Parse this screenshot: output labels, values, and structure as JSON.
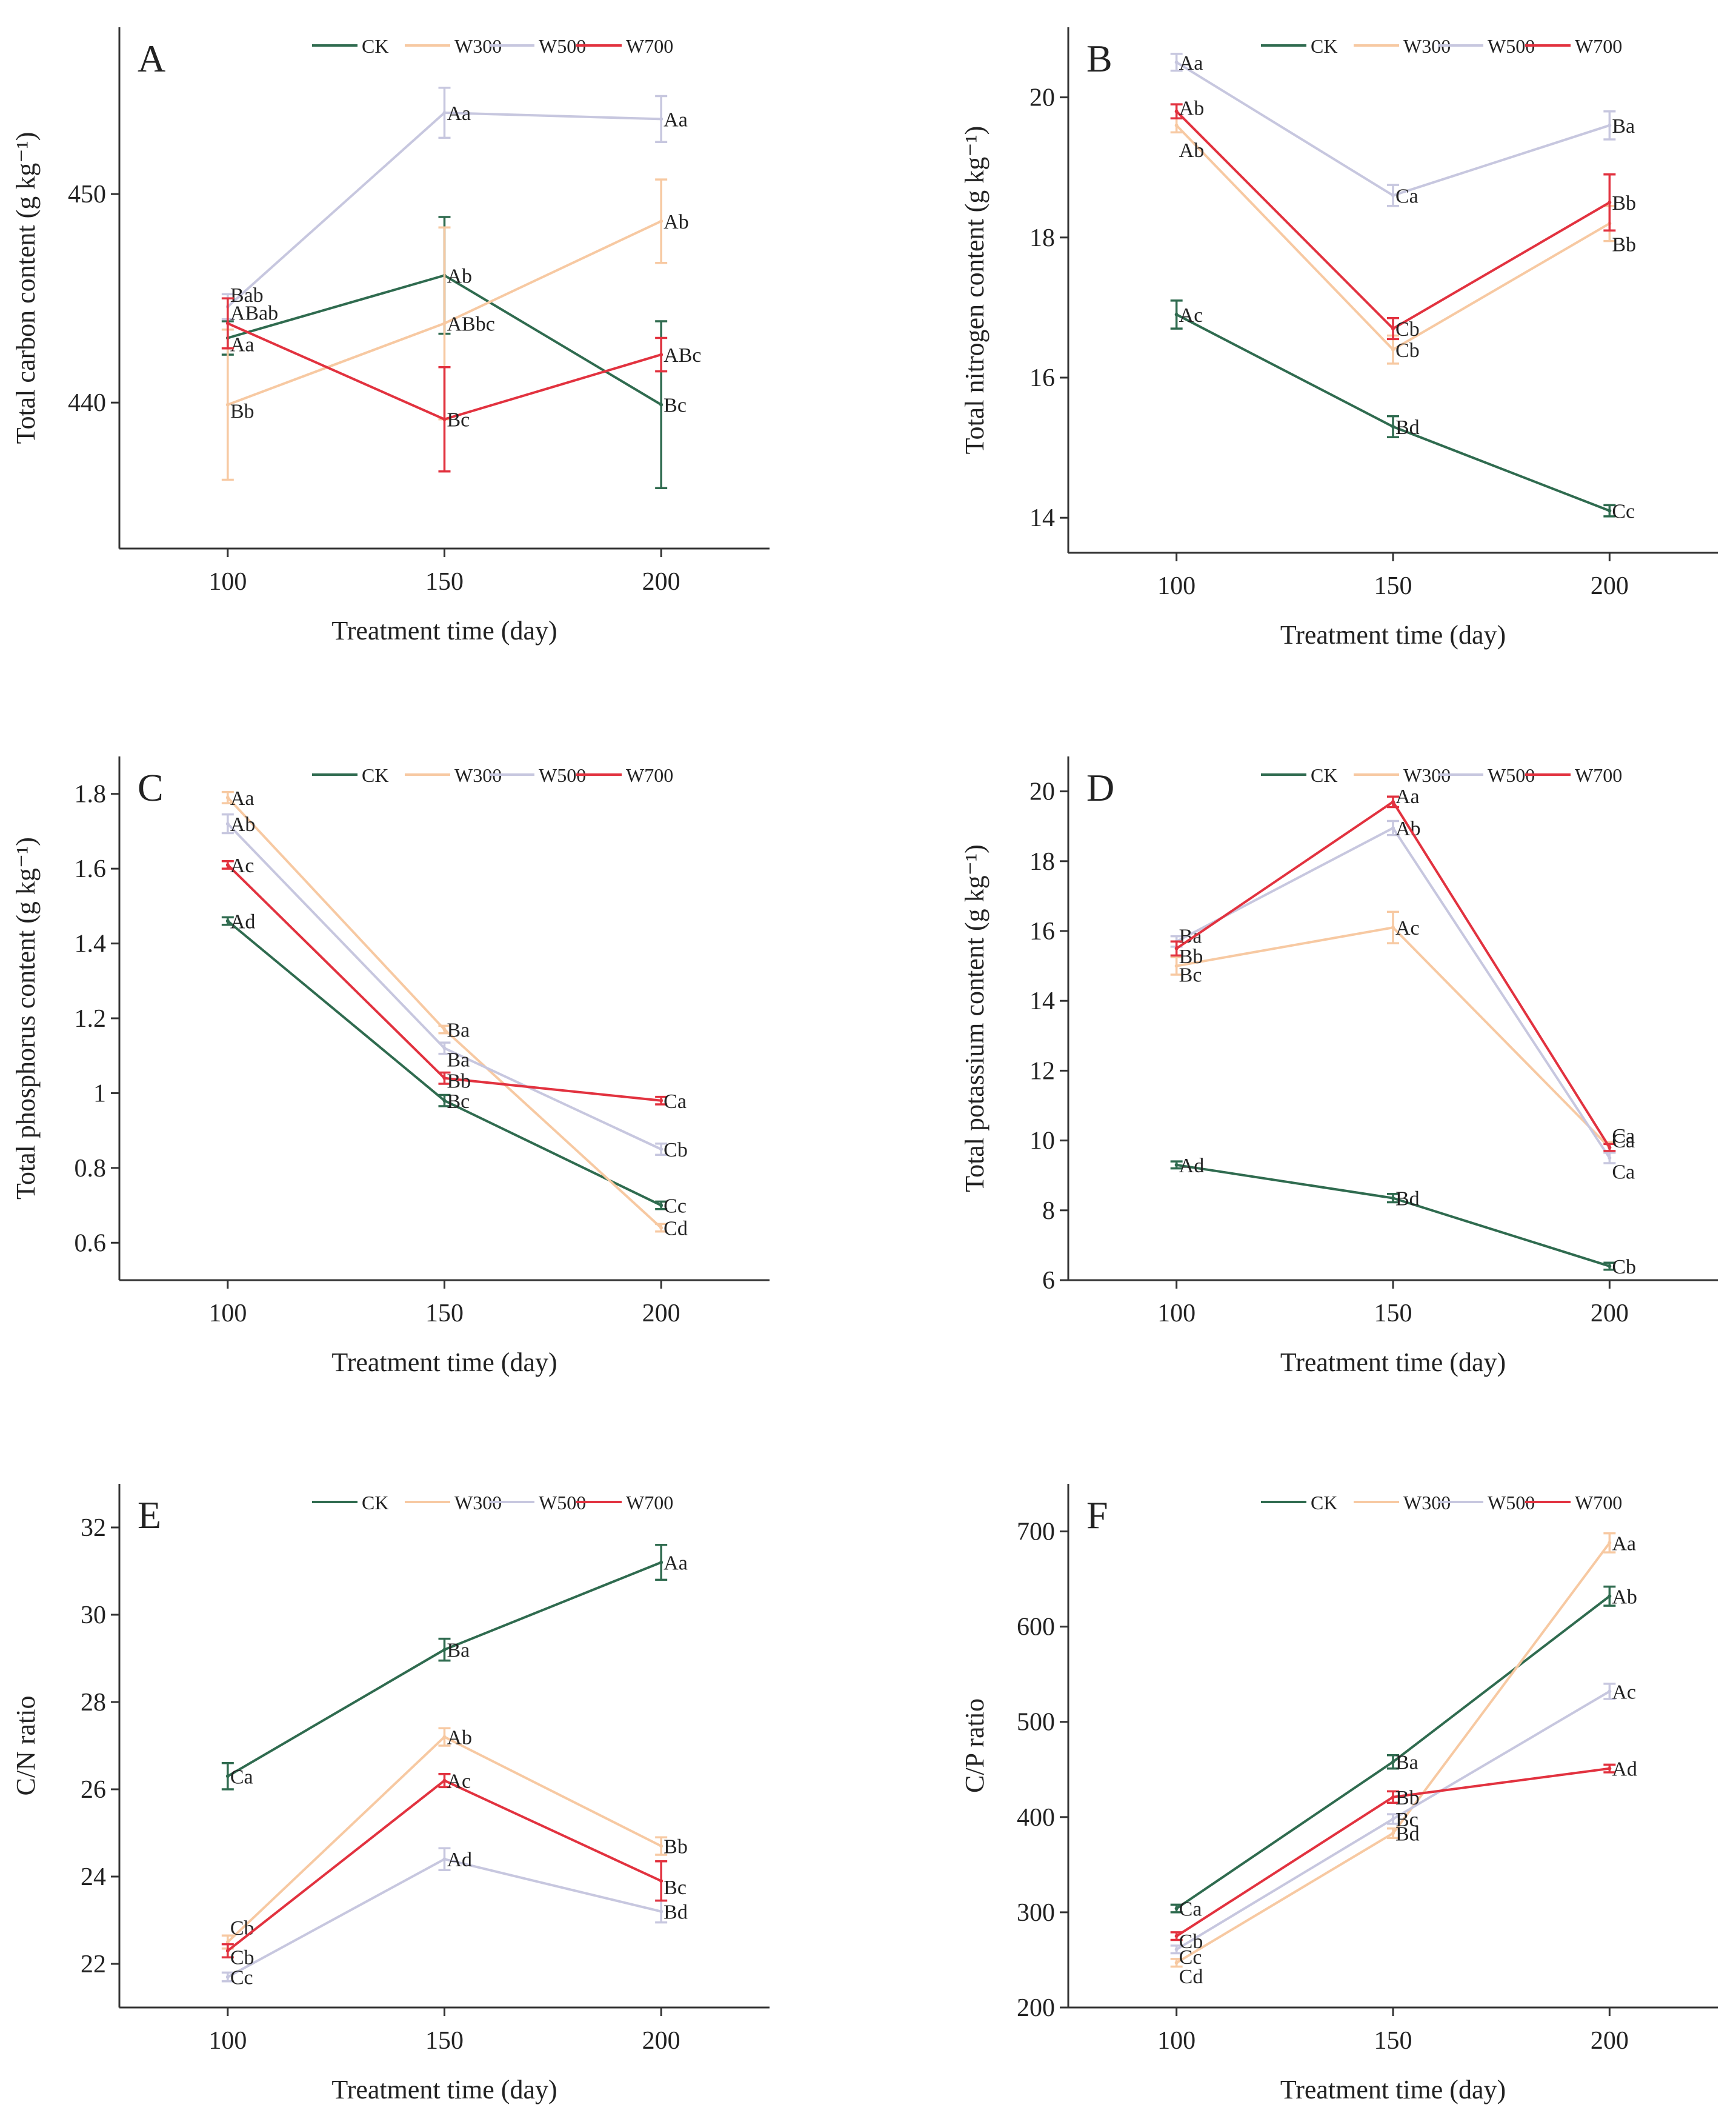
{
  "legend": {
    "series": [
      {
        "name": "CK",
        "color": "#2f6b4f"
      },
      {
        "name": "W300",
        "color": "#f7c9a2"
      },
      {
        "name": "W500",
        "color": "#c7c7df"
      },
      {
        "name": "W700",
        "color": "#e2323f"
      }
    ]
  },
  "chart_data": [
    {
      "type": "line",
      "panel": "A",
      "xlabel": "Treatment time (day)",
      "ylabel": "Total carbon content (g kg⁻¹)",
      "x": [
        100,
        150,
        200
      ],
      "xlim": [
        75,
        225
      ],
      "ylim": [
        433,
        458
      ],
      "yticks": [
        440,
        450
      ],
      "series": [
        {
          "name": "CK",
          "values": [
            443.1,
            446.1,
            439.9
          ],
          "errors": [
            0.8,
            2.8,
            4.0
          ],
          "labels": [
            "Aa",
            "Ab",
            "Bc"
          ]
        },
        {
          "name": "W300",
          "values": [
            439.9,
            443.8,
            448.7
          ],
          "errors": [
            3.6,
            4.6,
            2.0
          ],
          "labels": [
            "Bb",
            "ABbc",
            "Ab"
          ]
        },
        {
          "name": "W500",
          "values": [
            444.6,
            453.9,
            453.6
          ],
          "errors": [
            0.6,
            1.2,
            1.1
          ],
          "labels": [
            "Bab",
            "Aa",
            "Aa"
          ]
        },
        {
          "name": "W700",
          "values": [
            443.8,
            439.2,
            442.3
          ],
          "errors": [
            1.2,
            2.5,
            0.8
          ],
          "labels": [
            "ABab",
            "Bc",
            "ABc"
          ]
        }
      ]
    },
    {
      "type": "line",
      "panel": "B",
      "xlabel": "Treatment time (day)",
      "ylabel": "Total nitrogen content (g kg⁻¹)",
      "x": [
        100,
        150,
        200
      ],
      "xlim": [
        75,
        225
      ],
      "ylim": [
        13.5,
        21
      ],
      "yticks": [
        14,
        16,
        18,
        20
      ],
      "series": [
        {
          "name": "CK",
          "values": [
            16.9,
            15.3,
            14.1
          ],
          "errors": [
            0.2,
            0.15,
            0.08
          ],
          "labels": [
            "Ac",
            "Bd",
            "Cc"
          ]
        },
        {
          "name": "W300",
          "values": [
            19.6,
            16.4,
            18.2
          ],
          "errors": [
            0.1,
            0.2,
            0.25
          ],
          "labels": [
            "Ab",
            "Cb",
            "Bb"
          ]
        },
        {
          "name": "W500",
          "values": [
            20.5,
            18.6,
            19.6
          ],
          "errors": [
            0.12,
            0.15,
            0.2
          ],
          "labels": [
            "Aa",
            "Ca",
            "Ba"
          ]
        },
        {
          "name": "W700",
          "values": [
            19.8,
            16.7,
            18.5
          ],
          "errors": [
            0.1,
            0.15,
            0.4
          ],
          "labels": [
            "Ab",
            "Cb",
            "Bb"
          ]
        }
      ]
    },
    {
      "type": "line",
      "panel": "C",
      "xlabel": "Treatment time (day)",
      "ylabel": "Total phosphorus content (g kg⁻¹)",
      "x": [
        100,
        150,
        200
      ],
      "xlim": [
        75,
        225
      ],
      "ylim": [
        0.5,
        1.9
      ],
      "yticks": [
        0.6,
        0.8,
        1.0,
        1.2,
        1.4,
        1.6,
        1.8
      ],
      "series": [
        {
          "name": "CK",
          "values": [
            1.46,
            0.98,
            0.7
          ],
          "errors": [
            0.01,
            0.015,
            0.01
          ],
          "labels": [
            "Ad",
            "Bc",
            "Cc"
          ]
        },
        {
          "name": "W300",
          "values": [
            1.79,
            1.17,
            0.64
          ],
          "errors": [
            0.015,
            0.01,
            0.01
          ],
          "labels": [
            "Aa",
            "Ba",
            "Cd"
          ]
        },
        {
          "name": "W500",
          "values": [
            1.72,
            1.12,
            0.85
          ],
          "errors": [
            0.025,
            0.015,
            0.015
          ],
          "labels": [
            "Ab",
            "Ba",
            "Cb"
          ]
        },
        {
          "name": "W700",
          "values": [
            1.61,
            1.04,
            0.98
          ],
          "errors": [
            0.01,
            0.015,
            0.01
          ],
          "labels": [
            "Ac",
            "Bb",
            "Ca"
          ]
        }
      ]
    },
    {
      "type": "line",
      "panel": "D",
      "xlabel": "Treatment time (day)",
      "ylabel": "Total potassium content (g kg⁻¹)",
      "x": [
        100,
        150,
        200
      ],
      "xlim": [
        75,
        225
      ],
      "ylim": [
        6,
        21
      ],
      "yticks": [
        6,
        8,
        10,
        12,
        14,
        16,
        18,
        20
      ],
      "series": [
        {
          "name": "CK",
          "values": [
            9.3,
            8.35,
            6.4
          ],
          "errors": [
            0.1,
            0.12,
            0.1
          ],
          "labels": [
            "Ad",
            "Bd",
            "Cb"
          ]
        },
        {
          "name": "W300",
          "values": [
            15.0,
            16.1,
            9.8
          ],
          "errors": [
            0.25,
            0.45,
            0.15
          ],
          "labels": [
            "Bc",
            "Ac",
            "Ca"
          ]
        },
        {
          "name": "W500",
          "values": [
            15.7,
            18.95,
            9.5
          ],
          "errors": [
            0.15,
            0.2,
            0.15
          ],
          "labels": [
            "Ba",
            "Ab",
            "Ca"
          ]
        },
        {
          "name": "W700",
          "values": [
            15.5,
            19.7,
            9.8
          ],
          "errors": [
            0.2,
            0.15,
            0.1
          ],
          "labels": [
            "Bb",
            "Aa",
            "Ca"
          ]
        }
      ]
    },
    {
      "type": "line",
      "panel": "E",
      "xlabel": "Treatment time (day)",
      "ylabel": "C/N ratio",
      "x": [
        100,
        150,
        200
      ],
      "xlim": [
        75,
        225
      ],
      "ylim": [
        21,
        33
      ],
      "yticks": [
        22,
        24,
        26,
        28,
        30,
        32
      ],
      "series": [
        {
          "name": "CK",
          "values": [
            26.3,
            29.2,
            31.2
          ],
          "errors": [
            0.3,
            0.25,
            0.4
          ],
          "labels": [
            "Ca",
            "Ba",
            "Aa"
          ]
        },
        {
          "name": "W300",
          "values": [
            22.5,
            27.2,
            24.7
          ],
          "errors": [
            0.15,
            0.2,
            0.2
          ],
          "labels": [
            "Cb",
            "Ab",
            "Bb"
          ]
        },
        {
          "name": "W500",
          "values": [
            21.7,
            24.4,
            23.2
          ],
          "errors": [
            0.1,
            0.25,
            0.25
          ],
          "labels": [
            "Cc",
            "Ad",
            "Bd"
          ]
        },
        {
          "name": "W700",
          "values": [
            22.3,
            26.2,
            23.9
          ],
          "errors": [
            0.15,
            0.15,
            0.45
          ],
          "labels": [
            "Cb",
            "Ac",
            "Bc"
          ]
        }
      ]
    },
    {
      "type": "line",
      "panel": "F",
      "xlabel": "Treatment time (day)",
      "ylabel": "C/P ratio",
      "x": [
        100,
        150,
        200
      ],
      "xlim": [
        75,
        225
      ],
      "ylim": [
        200,
        750
      ],
      "yticks": [
        200,
        300,
        400,
        500,
        600,
        700
      ],
      "series": [
        {
          "name": "CK",
          "values": [
            304,
            458,
            632
          ],
          "errors": [
            4,
            7,
            10
          ],
          "labels": [
            "Ca",
            "Ba",
            "Ab"
          ]
        },
        {
          "name": "W300",
          "values": [
            247,
            383,
            688
          ],
          "errors": [
            4,
            5,
            10
          ],
          "labels": [
            "Cd",
            "Bd",
            "Aa"
          ]
        },
        {
          "name": "W500",
          "values": [
            261,
            398,
            532
          ],
          "errors": [
            4,
            5,
            8
          ],
          "labels": [
            "Cc",
            "Bc",
            "Ac"
          ]
        },
        {
          "name": "W700",
          "values": [
            275,
            421,
            451
          ],
          "errors": [
            4,
            6,
            4
          ],
          "labels": [
            "Cb",
            "Bb",
            "Ad"
          ]
        }
      ]
    }
  ]
}
